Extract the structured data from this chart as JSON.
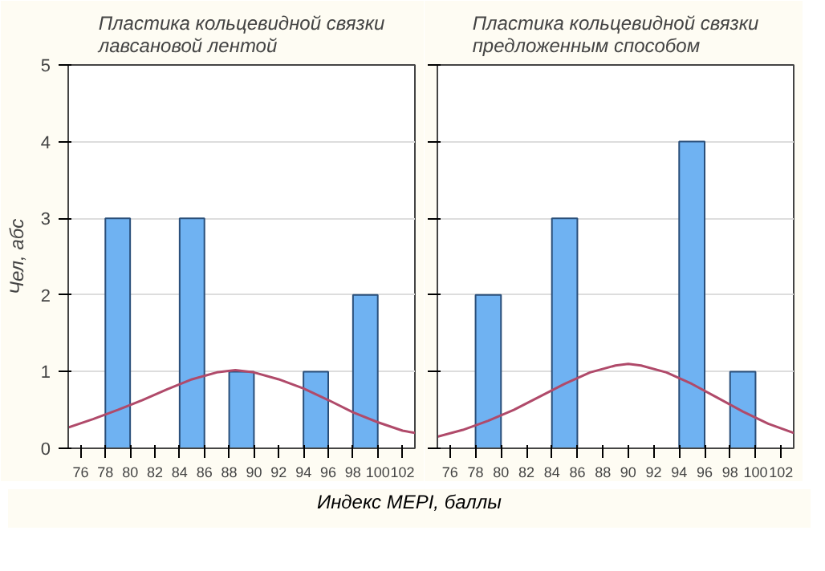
{
  "chart_data": [
    {
      "type": "histogram",
      "title": "Пластика кольцевидной связки\nлавсановой лентой",
      "xlabel": "Индекс MEPI, баллы",
      "ylabel": "Чел, абс",
      "bins": [
        76,
        78,
        80,
        82,
        84,
        86,
        88,
        90,
        92,
        94,
        96,
        98,
        100,
        102
      ],
      "values": [
        0,
        3,
        0,
        0,
        3,
        0,
        1,
        0,
        0,
        1,
        0,
        2,
        0
      ],
      "color": "#6fb2f2",
      "series": [
        {
          "type": "line",
          "color": "#b04a6a",
          "x": [
            75,
            77,
            79,
            81,
            83,
            85,
            87,
            88.5,
            90,
            92,
            94,
            96,
            98,
            100,
            102,
            103
          ],
          "values": [
            0.27,
            0.38,
            0.5,
            0.63,
            0.77,
            0.9,
            0.99,
            1.02,
            0.99,
            0.9,
            0.78,
            0.63,
            0.47,
            0.34,
            0.23,
            0.2
          ]
        }
      ],
      "xlim": [
        75,
        103
      ],
      "xticks": [
        76,
        78,
        80,
        82,
        84,
        86,
        88,
        90,
        92,
        94,
        96,
        98,
        100,
        102
      ],
      "ylim": [
        0,
        5
      ],
      "yticks": [
        0,
        1,
        2,
        3,
        4,
        5
      ],
      "grid": "y"
    },
    {
      "type": "histogram",
      "title": "Пластика кольцевидной связки\nпредложенным способом",
      "bins": [
        76,
        78,
        80,
        82,
        84,
        86,
        88,
        90,
        92,
        94,
        96,
        98,
        100,
        102
      ],
      "values": [
        0,
        2,
        0,
        0,
        3,
        0,
        0,
        0,
        0,
        4,
        0,
        1,
        0
      ],
      "color": "#6fb2f2",
      "series": [
        {
          "type": "line",
          "color": "#b04a6a",
          "x": [
            75,
            77,
            79,
            81,
            83,
            85,
            87,
            89,
            90,
            91,
            93,
            95,
            97,
            99,
            101,
            103
          ],
          "values": [
            0.15,
            0.24,
            0.36,
            0.5,
            0.67,
            0.84,
            0.99,
            1.08,
            1.1,
            1.08,
            0.99,
            0.84,
            0.66,
            0.48,
            0.32,
            0.2
          ]
        }
      ],
      "xlim": [
        75,
        103
      ],
      "xticks": [
        76,
        78,
        80,
        82,
        84,
        86,
        88,
        90,
        92,
        94,
        96,
        98,
        100,
        102
      ],
      "ylim": [
        0,
        5
      ],
      "yticks": [
        0,
        1,
        2,
        3,
        4,
        5
      ],
      "grid": "y",
      "tick_labels": "x"
    }
  ]
}
